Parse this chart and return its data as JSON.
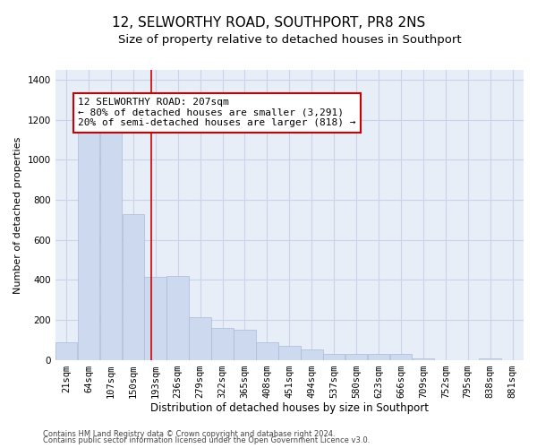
{
  "title": "12, SELWORTHY ROAD, SOUTHPORT, PR8 2NS",
  "subtitle": "Size of property relative to detached houses in Southport",
  "xlabel": "Distribution of detached houses by size in Southport",
  "ylabel": "Number of detached properties",
  "bar_color": "#ccd9ee",
  "bar_edge_color": "#aabbd8",
  "grid_color": "#c8d4e8",
  "background_color": "#e8eef8",
  "vline_x": 207,
  "vline_color": "#cc0000",
  "annotation_line1": "12 SELWORTHY ROAD: 207sqm",
  "annotation_line2": "← 80% of detached houses are smaller (3,291)",
  "annotation_line3": "20% of semi-detached houses are larger (818) →",
  "annotation_box_color": "#cc0000",
  "categories": [
    "21sqm",
    "64sqm",
    "107sqm",
    "150sqm",
    "193sqm",
    "236sqm",
    "279sqm",
    "322sqm",
    "365sqm",
    "408sqm",
    "451sqm",
    "494sqm",
    "537sqm",
    "580sqm",
    "623sqm",
    "666sqm",
    "709sqm",
    "752sqm",
    "795sqm",
    "838sqm",
    "881sqm"
  ],
  "bin_edges": [
    21,
    64,
    107,
    150,
    193,
    236,
    279,
    322,
    365,
    408,
    451,
    494,
    537,
    580,
    623,
    666,
    709,
    752,
    795,
    838,
    881,
    924
  ],
  "values": [
    90,
    1150,
    1140,
    730,
    415,
    420,
    215,
    160,
    150,
    90,
    70,
    50,
    30,
    28,
    28,
    28,
    5,
    0,
    0,
    5,
    0
  ],
  "ylim": [
    0,
    1450
  ],
  "yticks": [
    0,
    200,
    400,
    600,
    800,
    1000,
    1200,
    1400
  ],
  "footnote1": "Contains HM Land Registry data © Crown copyright and database right 2024.",
  "footnote2": "Contains public sector information licensed under the Open Government Licence v3.0.",
  "title_fontsize": 11,
  "subtitle_fontsize": 9.5,
  "xlabel_fontsize": 8.5,
  "ylabel_fontsize": 8,
  "tick_fontsize": 7.5,
  "annotation_fontsize": 8,
  "footnote_fontsize": 6
}
